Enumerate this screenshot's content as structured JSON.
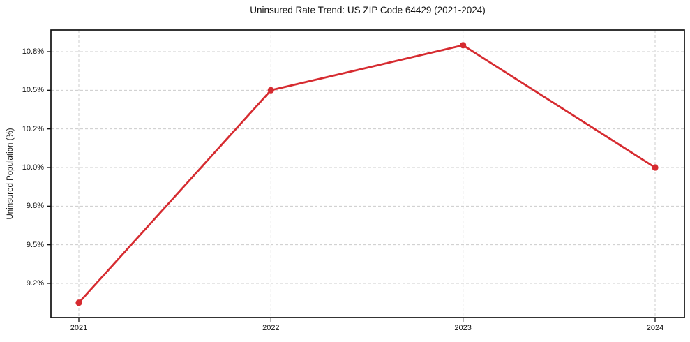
{
  "chart_data": {
    "type": "line",
    "title": "Uninsured Rate Trend: US ZIP Code 64429 (2021-2024)",
    "xlabel": "",
    "ylabel": "Uninsured Population (%)",
    "x": [
      "2021",
      "2022",
      "2023",
      "2024"
    ],
    "series": [
      {
        "values": [
          9.05,
          10.5,
          10.85,
          10.0
        ],
        "unit": "%",
        "color": "#d62b30",
        "marker": "circle",
        "line_style": "solid"
      }
    ],
    "ytick_labels": [
      "9.2%",
      "9.5%",
      "9.8%",
      "10.0%",
      "10.2%",
      "10.5%",
      "10.8%"
    ],
    "ytick_values": [
      9.2,
      9.5,
      9.8,
      10.0,
      10.2,
      10.5,
      10.8
    ],
    "grid": "dashed",
    "grid_color": "#cccccc",
    "axis_color": "#111111",
    "background": "#ffffff",
    "legend": "none"
  }
}
